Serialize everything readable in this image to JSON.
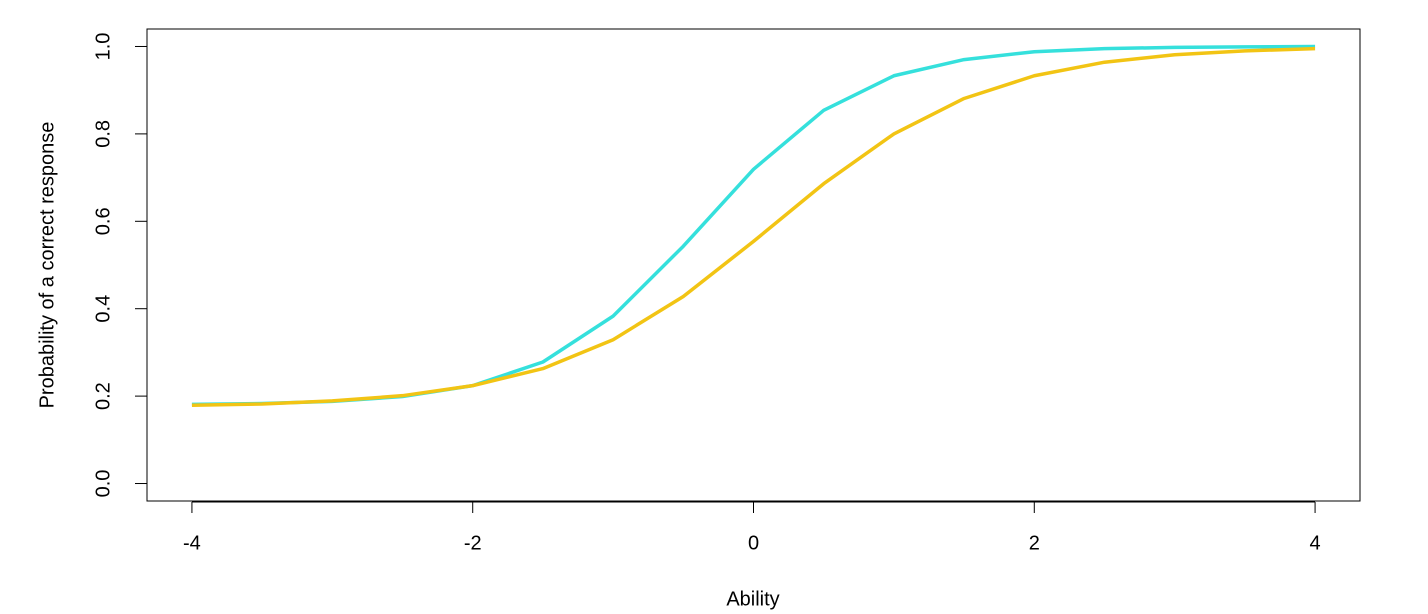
{
  "chart_data": {
    "type": "line",
    "x_label": "Ability",
    "y_label": "Probability of a correct response",
    "x": [
      -4,
      -3.5,
      -3,
      -2.5,
      -2,
      -1.5,
      -1,
      -0.5,
      0,
      0.5,
      1,
      1.5,
      2,
      2.5,
      3,
      3.5,
      4
    ],
    "series": [
      {
        "color": "#35e0dc",
        "values": [
          0.181,
          0.183,
          0.188,
          0.199,
          0.224,
          0.278,
          0.383,
          0.543,
          0.719,
          0.854,
          0.933,
          0.97,
          0.988,
          0.995,
          0.998,
          0.999,
          1.0
        ]
      },
      {
        "color": "#f2c414",
        "values": [
          0.179,
          0.182,
          0.189,
          0.201,
          0.224,
          0.263,
          0.329,
          0.428,
          0.554,
          0.686,
          0.8,
          0.881,
          0.933,
          0.964,
          0.981,
          0.99,
          0.995
        ]
      }
    ],
    "xlim": [
      -4.32,
      4.32
    ],
    "ylim": [
      -0.04,
      1.04
    ],
    "xticks": [
      -4,
      -2,
      0,
      2,
      4
    ],
    "yticks": [
      {
        "value": 0,
        "label": "0.0"
      },
      0.2,
      0.4,
      0.6,
      0.8,
      {
        "value": 1,
        "label": "1.0"
      }
    ]
  }
}
